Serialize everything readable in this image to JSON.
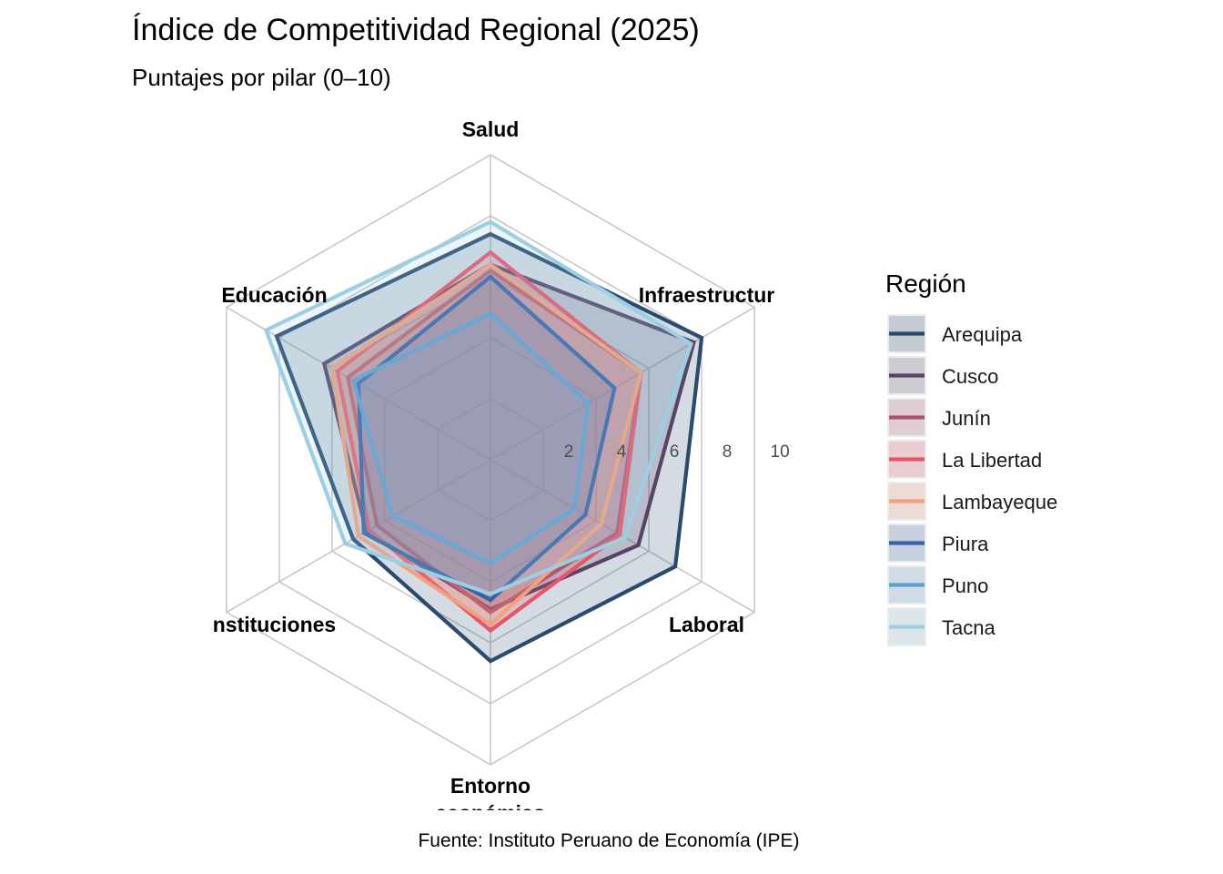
{
  "title": "Índice de Competitividad Regional (2025)",
  "subtitle": "Puntajes por pilar (0–10)",
  "caption": "Fuente: Instituto Peruano de Economía (IPE)",
  "legend_title": "Región",
  "chart_data": {
    "type": "radar",
    "axes": [
      "Salud",
      "Infraestructura",
      "Laboral",
      "Entorno económico",
      "Instituciones",
      "Educación"
    ],
    "axis_labels_display": [
      "Salud",
      "Infraestructur",
      "Laboral",
      "Entorno\neconómico",
      "nstituciones",
      "Educación"
    ],
    "r_ticks": [
      "2",
      "4",
      "6",
      "8",
      "10"
    ],
    "r_range": [
      0,
      10
    ],
    "grid": true,
    "legend_position": "right",
    "series": [
      {
        "name": "Arequipa",
        "color": "#2a4a6e",
        "values": [
          7.4,
          8.0,
          7.0,
          6.6,
          5.2,
          8.1
        ]
      },
      {
        "name": "Cusco",
        "color": "#574467",
        "values": [
          6.4,
          7.7,
          5.6,
          4.9,
          4.7,
          6.3
        ]
      },
      {
        "name": "Junín",
        "color": "#a8546e",
        "values": [
          6.2,
          5.7,
          4.8,
          5.0,
          4.3,
          5.4
        ]
      },
      {
        "name": "La Libertad",
        "color": "#e85468",
        "values": [
          6.8,
          5.7,
          4.9,
          5.6,
          4.6,
          5.8
        ]
      },
      {
        "name": "Lambayeque",
        "color": "#f4a07c",
        "values": [
          6.4,
          5.7,
          4.2,
          5.4,
          5.0,
          6.0
        ]
      },
      {
        "name": "Piura",
        "color": "#3464a8",
        "values": [
          6.0,
          4.7,
          3.6,
          4.6,
          4.8,
          5.0
        ]
      },
      {
        "name": "Puno",
        "color": "#5e9ed1",
        "values": [
          4.8,
          3.7,
          3.2,
          3.4,
          3.7,
          5.2
        ]
      },
      {
        "name": "Tacna",
        "color": "#9dcfe4",
        "values": [
          7.8,
          7.6,
          5.1,
          4.4,
          5.5,
          8.5
        ]
      }
    ]
  }
}
